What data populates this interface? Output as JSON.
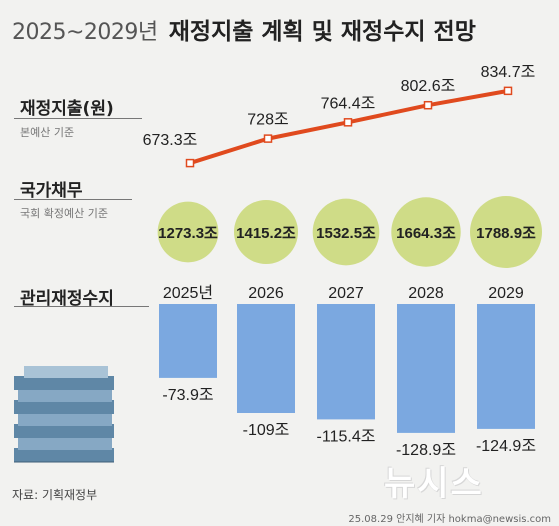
{
  "header": {
    "years": "2025~2029년",
    "title": "재정지출 계획 및 재정수지 전망"
  },
  "sections": {
    "spending": {
      "label": "재정지출(원)",
      "sub": "본예산 기준"
    },
    "debt": {
      "label": "국가채무",
      "sub": "국회 확정예산 기준"
    },
    "balance": {
      "label": "관리재정수지"
    }
  },
  "colors": {
    "line": "#e04a1e",
    "circle": "#cfdc87",
    "bar": "#7ba8e0",
    "background": "#f2f2f0"
  },
  "chart_data": [
    {
      "type": "line",
      "x": [
        "2025년",
        "2026",
        "2027",
        "2028",
        "2029"
      ],
      "values": [
        673.3,
        728,
        764.4,
        802.6,
        834.7
      ],
      "labels": [
        "673.3조",
        "728조",
        "764.4조",
        "802.6조",
        "834.7조"
      ],
      "ylim": [
        640,
        850
      ]
    },
    {
      "type": "bubble",
      "x": [
        "2025년",
        "2026",
        "2027",
        "2028",
        "2029"
      ],
      "values": [
        1273.3,
        1415.2,
        1532.5,
        1664.3,
        1788.9
      ],
      "labels": [
        "1273.3조",
        "1415.2조",
        "1532.5조",
        "1664.3조",
        "1788.9조"
      ]
    },
    {
      "type": "bar",
      "categories": [
        "2025년",
        "2026",
        "2027",
        "2028",
        "2029"
      ],
      "values": [
        -73.9,
        -109,
        -115.4,
        -128.9,
        -124.9
      ],
      "labels": [
        "-73.9조",
        "-109조",
        "-115.4조",
        "-128.9조",
        "-124.9조"
      ],
      "ylim": [
        -140,
        0
      ]
    }
  ],
  "footer": {
    "source": "자료: 기획재정부",
    "credit": "25.08.29 안지혜 기자 hokma@newsis.com",
    "logo": "뉴시스"
  }
}
